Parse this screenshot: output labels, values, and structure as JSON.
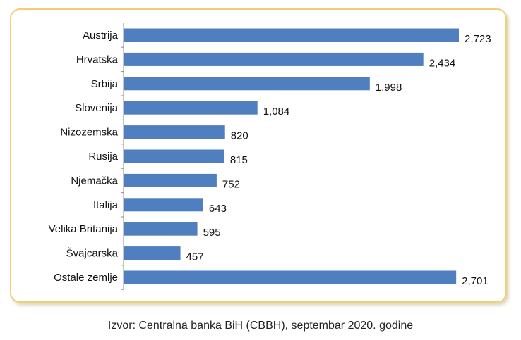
{
  "chart_data": {
    "type": "bar",
    "orientation": "horizontal",
    "categories": [
      "Austrija",
      "Hrvatska",
      "Srbija",
      "Slovenija",
      "Nizozemska",
      "Rusija",
      "Njemačka",
      "Italija",
      "Velika Britanija",
      "Švajcarska",
      "Ostale zemlje"
    ],
    "values": [
      2723,
      2434,
      1998,
      1084,
      820,
      815,
      752,
      643,
      595,
      457,
      2701
    ],
    "value_labels": [
      "2,723",
      "2,434",
      "1,998",
      "1,084",
      "820",
      "815",
      "752",
      "643",
      "595",
      "457",
      "2,701"
    ],
    "title": "",
    "xlabel": "",
    "ylabel": "",
    "xlim": [
      0,
      2800
    ],
    "grid": false,
    "bar_color": "#4f7fbf"
  },
  "source_text": "Izvor: Centralna banka BiH (CBBH), septembar 2020. godine"
}
